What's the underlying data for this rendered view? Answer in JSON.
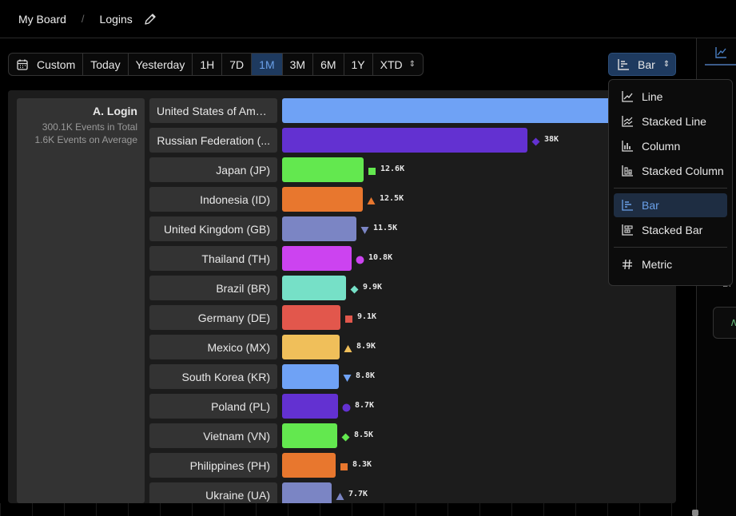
{
  "breadcrumb": {
    "board": "My Board",
    "separator": "/",
    "page": "Logins"
  },
  "toolbar": {
    "ranges": [
      {
        "label": "Custom",
        "active": false
      },
      {
        "label": "Today",
        "active": false
      },
      {
        "label": "Yesterday",
        "active": false
      },
      {
        "label": "1H",
        "active": false
      },
      {
        "label": "7D",
        "active": false
      },
      {
        "label": "1M",
        "active": true
      },
      {
        "label": "3M",
        "active": false
      },
      {
        "label": "6M",
        "active": false
      },
      {
        "label": "1Y",
        "active": false
      },
      {
        "label": "XTD",
        "active": false
      }
    ],
    "viz_label": "Bar"
  },
  "legend": {
    "title": "A. Login",
    "total": "300.1K Events in Total",
    "average": "1.6K Events on Average"
  },
  "chart_data": {
    "type": "bar",
    "orientation": "horizontal",
    "categories": [
      "United States of Ame...",
      "Russian Federation (...",
      "Japan (JP)",
      "Indonesia (ID)",
      "United Kingdom (GB)",
      "Thailand (TH)",
      "Brazil (BR)",
      "Germany (DE)",
      "Mexico (MX)",
      "South Korea (KR)",
      "Poland (PL)",
      "Vietnam (VN)",
      "Philippines (PH)",
      "Ukraine (UA)"
    ],
    "values": [
      60000,
      38000,
      12600,
      12500,
      11500,
      10800,
      9900,
      9100,
      8900,
      8800,
      8700,
      8500,
      8300,
      7700
    ],
    "value_labels": [
      "",
      "38K",
      "12.6K",
      "12.5K",
      "11.5K",
      "10.8K",
      "9.9K",
      "9.1K",
      "8.9K",
      "8.8K",
      "8.7K",
      "8.5K",
      "8.3K",
      "7.7K"
    ],
    "colors": [
      "#6fa2f5",
      "#6331d1",
      "#63e84f",
      "#e8772e",
      "#7b85c4",
      "#cc43f0",
      "#76e0c7",
      "#e2574c",
      "#f0bf5a",
      "#6fa2f5",
      "#6331d1",
      "#63e84f",
      "#e8772e",
      "#7b85c4"
    ],
    "markers": [
      "none",
      "diamond",
      "square",
      "triangle-up",
      "triangle-down",
      "circle",
      "diamond",
      "square",
      "triangle-up",
      "triangle-down",
      "circle",
      "diamond",
      "square",
      "triangle-up"
    ]
  },
  "viz_menu": {
    "groups": [
      [
        {
          "label": "Line",
          "icon": "line-chart-icon",
          "selected": false
        },
        {
          "label": "Stacked Line",
          "icon": "stacked-line-icon",
          "selected": false
        },
        {
          "label": "Column",
          "icon": "column-chart-icon",
          "selected": false
        },
        {
          "label": "Stacked Column",
          "icon": "stacked-column-icon",
          "selected": false
        }
      ],
      [
        {
          "label": "Bar",
          "icon": "bar-chart-icon",
          "selected": true
        },
        {
          "label": "Stacked Bar",
          "icon": "stacked-bar-icon",
          "selected": false
        }
      ],
      [
        {
          "label": "Metric",
          "icon": "hash-icon",
          "selected": false
        }
      ]
    ]
  },
  "right_panel": {
    "snippet": "Br"
  }
}
